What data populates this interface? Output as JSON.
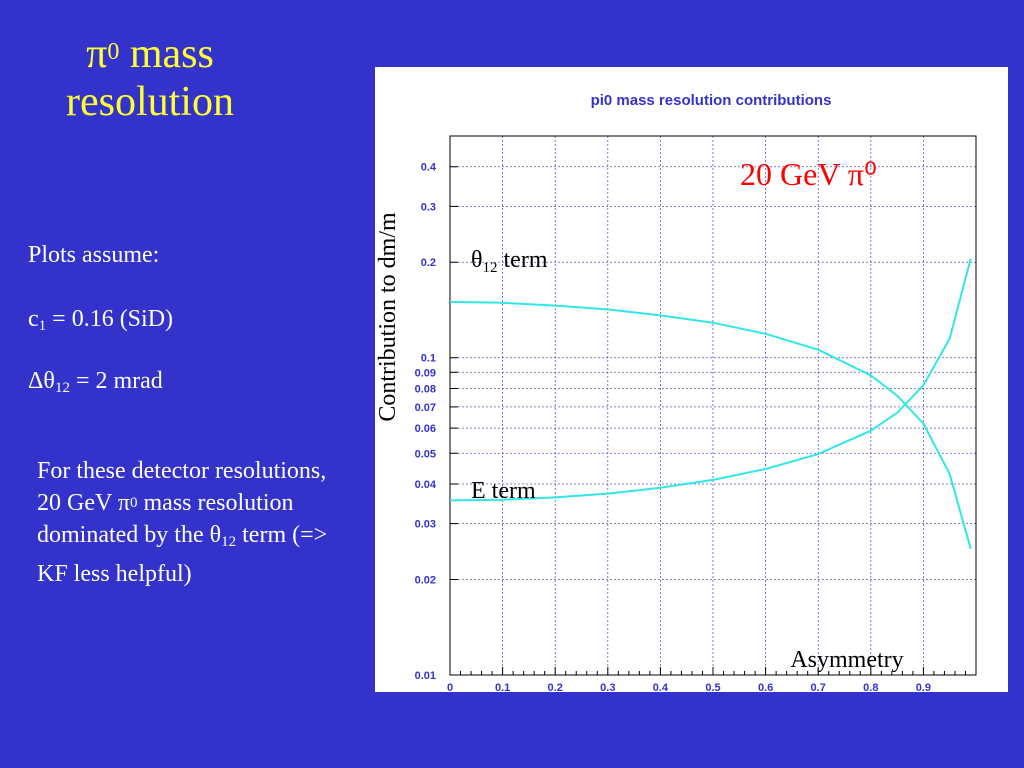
{
  "slide": {
    "title_symbol": "π",
    "title_sup": "0",
    "title_rest": " mass",
    "title_line2": "resolution",
    "assume_heading": "Plots assume:",
    "assume_c1_label": "c",
    "assume_c1_sub": "1",
    "assume_c1_value": " = 0.16 (SiD)",
    "assume_dtheta_label": "Δθ",
    "assume_dtheta_sub": "12",
    "assume_dtheta_value": " = 2 mrad",
    "note_part1": "For these detector resolutions, 20 GeV ",
    "note_pi": "π",
    "note_pi_sup": "0",
    "note_part2": " mass resolution dominated by the θ",
    "note_theta_sub": "12",
    "note_part3": " term (=> KF less helpful)"
  },
  "chart_data": {
    "type": "line",
    "title": "pi0 mass resolution contributions",
    "xlabel": "Asymmetry",
    "ylabel": "Contribution to dm/m",
    "xlim": [
      0,
      1
    ],
    "ylim": [
      0.01,
      0.5
    ],
    "yscale": "log",
    "grid": true,
    "x_ticks": [
      "0",
      "0.1",
      "0.2",
      "0.3",
      "0.4",
      "0.5",
      "0.6",
      "0.7",
      "0.8",
      "0.9"
    ],
    "y_ticks": [
      "0.01",
      "0.02",
      "0.03",
      "0.04",
      "0.05",
      "0.06",
      "0.07",
      "0.08",
      "0.09",
      "0.1",
      "0.2",
      "0.3",
      "0.4"
    ],
    "annotation": "20 GeV π⁰",
    "annotation_color": "#ff0000",
    "series": [
      {
        "name": "θ12 term",
        "color": "#33e6e6",
        "x": [
          0,
          0.1,
          0.2,
          0.3,
          0.4,
          0.5,
          0.6,
          0.7,
          0.8,
          0.85,
          0.9,
          0.95,
          0.99
        ],
        "y": [
          0.15,
          0.149,
          0.146,
          0.142,
          0.136,
          0.129,
          0.119,
          0.106,
          0.088,
          0.076,
          0.062,
          0.043,
          0.025
        ]
      },
      {
        "name": "E term",
        "color": "#33e6e6",
        "x": [
          0,
          0.1,
          0.2,
          0.3,
          0.4,
          0.5,
          0.6,
          0.7,
          0.8,
          0.85,
          0.9,
          0.95,
          0.99
        ],
        "y": [
          0.0355,
          0.0357,
          0.0363,
          0.0373,
          0.0389,
          0.0412,
          0.0446,
          0.0497,
          0.0589,
          0.067,
          0.0819,
          0.115,
          0.205
        ]
      }
    ],
    "series_label_texts": {
      "theta_symbol": "θ",
      "theta_sub": "12",
      "theta_rest": " term",
      "e_term": "E term"
    }
  }
}
